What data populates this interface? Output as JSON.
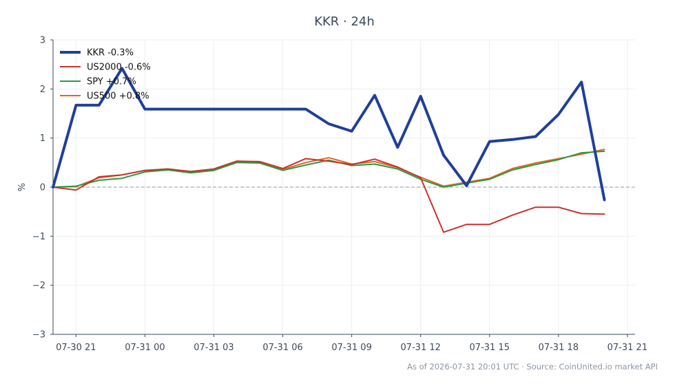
{
  "chart_data": {
    "type": "line",
    "title": "KKR · 24h",
    "ylabel": "%",
    "xlabel": "",
    "ylim": [
      -3,
      3
    ],
    "yticks": [
      -3,
      -2,
      -1,
      0,
      1,
      2,
      3
    ],
    "ytick_labels": [
      "−3",
      "−2",
      "−1",
      "0",
      "1",
      "2",
      "3"
    ],
    "x_start": "2026-07-30 20:00",
    "x_end": "2026-07-31 21:20",
    "xticks": [
      "2026-07-30 21:00",
      "2026-07-31 00:00",
      "2026-07-31 03:00",
      "2026-07-31 06:00",
      "2026-07-31 09:00",
      "2026-07-31 12:00",
      "2026-07-31 15:00",
      "2026-07-31 18:00",
      "2026-07-31 21:00"
    ],
    "xtick_labels": [
      "07-30 21",
      "07-31 00",
      "07-31 03",
      "07-31 06",
      "07-31 09",
      "07-31 12",
      "07-31 15",
      "07-31 18",
      "07-31 21"
    ],
    "x": [
      "2026-07-30 20:00",
      "2026-07-30 21:00",
      "2026-07-30 22:00",
      "2026-07-30 23:00",
      "2026-07-31 00:00",
      "2026-07-31 01:00",
      "2026-07-31 02:00",
      "2026-07-31 03:00",
      "2026-07-31 04:00",
      "2026-07-31 05:00",
      "2026-07-31 06:00",
      "2026-07-31 07:00",
      "2026-07-31 08:00",
      "2026-07-31 09:00",
      "2026-07-31 10:00",
      "2026-07-31 11:00",
      "2026-07-31 12:00",
      "2026-07-31 13:00",
      "2026-07-31 14:00",
      "2026-07-31 15:00",
      "2026-07-31 16:00",
      "2026-07-31 17:00",
      "2026-07-31 18:00",
      "2026-07-31 19:00",
      "2026-07-31 20:00"
    ],
    "series": [
      {
        "name": "KKR -0.3%",
        "color": "#1f3f99",
        "values": [
          0.0,
          1.67,
          1.67,
          2.42,
          1.59,
          1.59,
          1.59,
          1.59,
          1.59,
          1.59,
          1.59,
          1.59,
          1.29,
          1.14,
          1.87,
          0.81,
          1.85,
          0.65,
          0.03,
          0.93,
          0.97,
          1.03,
          1.48,
          2.14,
          -0.26
        ]
      },
      {
        "name": "US2000 -0.6%",
        "color": "#c8312f",
        "values": [
          0.0,
          -0.06,
          0.21,
          0.25,
          0.34,
          0.37,
          0.32,
          0.37,
          0.53,
          0.52,
          0.38,
          0.58,
          0.53,
          0.46,
          0.57,
          0.41,
          0.19,
          -0.92,
          -0.76,
          -0.76,
          -0.57,
          -0.41,
          -0.41,
          -0.54,
          -0.55
        ]
      },
      {
        "name": "SPY +0.7%",
        "color": "#2a9a3f",
        "values": [
          0.0,
          0.02,
          0.14,
          0.18,
          0.31,
          0.35,
          0.29,
          0.34,
          0.5,
          0.49,
          0.34,
          0.45,
          0.55,
          0.44,
          0.47,
          0.37,
          0.16,
          0.0,
          0.08,
          0.16,
          0.35,
          0.46,
          0.56,
          0.7,
          0.73
        ]
      },
      {
        "name": "US500 +0.8%",
        "color": "#e0671e",
        "values": [
          0.0,
          0.01,
          0.19,
          0.25,
          0.34,
          0.37,
          0.3,
          0.36,
          0.53,
          0.51,
          0.36,
          0.5,
          0.6,
          0.47,
          0.52,
          0.4,
          0.2,
          0.02,
          0.1,
          0.18,
          0.38,
          0.49,
          0.58,
          0.67,
          0.77
        ]
      }
    ],
    "baseline": 0,
    "grid": true,
    "legend_position": "top-left"
  },
  "footer": {
    "note": "As of 2026-07-31 20:01 UTC · Source: CoinUnited.io market API"
  }
}
